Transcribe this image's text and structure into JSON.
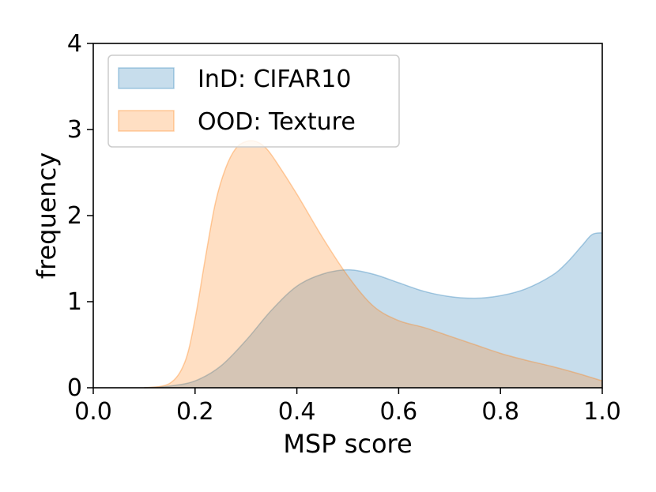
{
  "chart_data": {
    "type": "area",
    "xlabel": "MSP score",
    "ylabel": "frequency",
    "xlim": [
      0.0,
      1.0
    ],
    "ylim": [
      0,
      4
    ],
    "xticks": [
      0.0,
      0.2,
      0.4,
      0.6,
      0.8,
      1.0
    ],
    "xtick_labels": [
      "0.0",
      "0.2",
      "0.4",
      "0.6",
      "0.8",
      "1.0"
    ],
    "yticks": [
      0,
      1,
      2,
      3,
      4
    ],
    "ytick_labels": [
      "0",
      "1",
      "2",
      "3",
      "4"
    ],
    "grid": false,
    "legend_position": "top-left",
    "series": [
      {
        "name": "InD: CIFAR10",
        "color": "#1f77b4",
        "x": [
          0.1,
          0.15,
          0.2,
          0.25,
          0.3,
          0.35,
          0.4,
          0.45,
          0.5,
          0.55,
          0.6,
          0.65,
          0.7,
          0.75,
          0.8,
          0.85,
          0.9,
          0.93,
          0.96,
          0.98,
          1.0
        ],
        "y": [
          0.0,
          0.02,
          0.08,
          0.25,
          0.55,
          0.9,
          1.18,
          1.32,
          1.37,
          1.32,
          1.22,
          1.12,
          1.06,
          1.04,
          1.07,
          1.15,
          1.3,
          1.45,
          1.65,
          1.78,
          1.8
        ]
      },
      {
        "name": "OOD: Texture",
        "color": "#ff7f0e",
        "x": [
          0.1,
          0.15,
          0.18,
          0.2,
          0.22,
          0.24,
          0.26,
          0.28,
          0.3,
          0.32,
          0.34,
          0.36,
          0.4,
          0.45,
          0.5,
          0.55,
          0.6,
          0.65,
          0.7,
          0.75,
          0.8,
          0.85,
          0.9,
          0.95,
          1.0
        ],
        "y": [
          0.0,
          0.05,
          0.3,
          0.8,
          1.5,
          2.15,
          2.55,
          2.78,
          2.86,
          2.86,
          2.78,
          2.62,
          2.25,
          1.75,
          1.3,
          0.95,
          0.78,
          0.7,
          0.6,
          0.5,
          0.4,
          0.32,
          0.25,
          0.17,
          0.08
        ]
      }
    ]
  }
}
